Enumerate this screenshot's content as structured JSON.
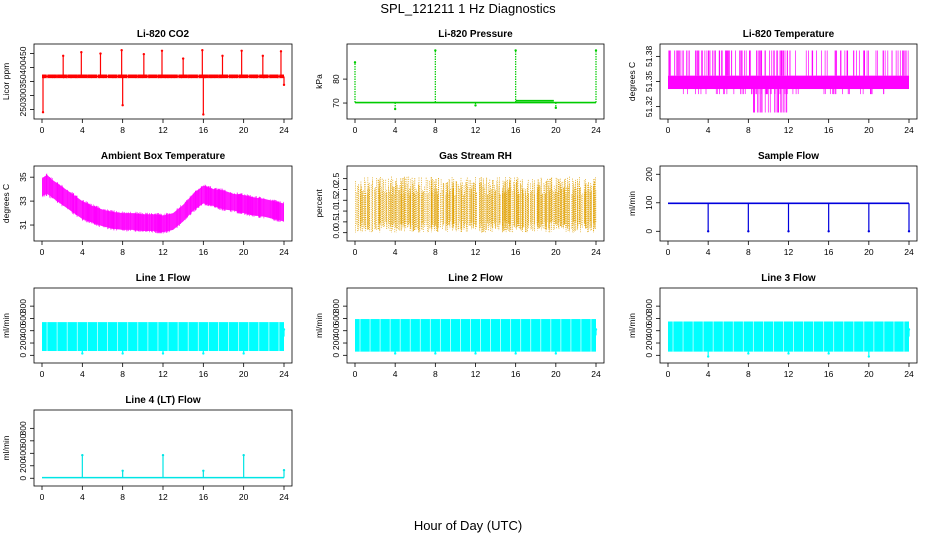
{
  "figure": {
    "title": "SPL_121211  1 Hz Diagnostics",
    "x_axis_label": "Hour of Day (UTC)"
  },
  "chart_data": [
    {
      "id": "li820-co2",
      "type": "line",
      "title": "Li-820 CO2",
      "xlabel": "",
      "ylabel": "Licor ppm",
      "color": "#ff0000",
      "xlim": [
        0,
        24
      ],
      "ylim": [
        230,
        470
      ],
      "x_ticks": [
        0,
        4,
        8,
        12,
        16,
        20,
        24
      ],
      "y_ticks": [
        250,
        300,
        350,
        400,
        450
      ],
      "baseline": 368,
      "band": [
        362,
        375
      ],
      "spikes": [
        {
          "x": 0.1,
          "y": 240
        },
        {
          "x": 2.1,
          "y": 442
        },
        {
          "x": 3.9,
          "y": 455
        },
        {
          "x": 5.8,
          "y": 450
        },
        {
          "x": 7.9,
          "y": 462
        },
        {
          "x": 8.0,
          "y": 265
        },
        {
          "x": 10.1,
          "y": 448
        },
        {
          "x": 11.9,
          "y": 460
        },
        {
          "x": 14.0,
          "y": 432
        },
        {
          "x": 15.9,
          "y": 462
        },
        {
          "x": 16.0,
          "y": 232
        },
        {
          "x": 17.9,
          "y": 442
        },
        {
          "x": 19.8,
          "y": 460
        },
        {
          "x": 21.9,
          "y": 442
        },
        {
          "x": 23.7,
          "y": 458
        },
        {
          "x": 24.0,
          "y": 338
        }
      ]
    },
    {
      "id": "li820-pressure",
      "type": "line",
      "title": "Li-820 Pressure",
      "xlabel": "",
      "ylabel": "kPa",
      "color": "#00cc00",
      "xlim": [
        0,
        24
      ],
      "ylim": [
        65,
        93
      ],
      "x_ticks": [
        0,
        4,
        8,
        12,
        16,
        20,
        24
      ],
      "y_ticks": [
        70,
        80
      ],
      "baseline": 70.2,
      "spikes": [
        {
          "x": 0.0,
          "y": 87
        },
        {
          "x": 4.0,
          "y": 67.5
        },
        {
          "x": 8.0,
          "y": 92
        },
        {
          "x": 12.0,
          "y": 69
        },
        {
          "x": 16.0,
          "y": 92
        },
        {
          "x": 20.0,
          "y": 68
        },
        {
          "x": 24.0,
          "y": 92
        }
      ],
      "step": {
        "x0": 16.0,
        "x1": 19.8,
        "y": 71.0
      }
    },
    {
      "id": "li820-temperature",
      "type": "area",
      "title": "Li-820 Temperature",
      "xlabel": "",
      "ylabel": "degrees C",
      "color": "#ff00ff",
      "xlim": [
        0,
        24
      ],
      "ylim": [
        51.31,
        51.39
      ],
      "x_ticks": [
        0,
        4,
        8,
        12,
        16,
        20,
        24
      ],
      "y_ticks": [
        51.32,
        51.35,
        51.38
      ],
      "band": [
        51.341,
        51.357
      ]
    },
    {
      "id": "ambient-box-temperature",
      "type": "area",
      "title": "Ambient Box Temperature",
      "xlabel": "",
      "ylabel": "degrees C",
      "color": "#ff00ff",
      "xlim": [
        0,
        24
      ],
      "ylim": [
        30.0,
        35.6
      ],
      "x_ticks": [
        0,
        4,
        8,
        12,
        16,
        20,
        24
      ],
      "y_ticks": [
        31,
        33,
        35
      ],
      "x": [
        0,
        0.5,
        1,
        2,
        3,
        4,
        5,
        6,
        7,
        8,
        9,
        10,
        11,
        12,
        13,
        14,
        15,
        16,
        17,
        18,
        19,
        20,
        21,
        22,
        23,
        24
      ],
      "upper": [
        34.9,
        35.2,
        34.8,
        34.2,
        33.6,
        33.0,
        32.6,
        32.3,
        32.1,
        32.0,
        32.0,
        31.9,
        31.9,
        31.8,
        32.0,
        32.7,
        33.6,
        34.3,
        34.0,
        33.9,
        33.6,
        33.5,
        33.3,
        33.2,
        33.0,
        32.8
      ],
      "lower": [
        33.4,
        33.6,
        33.3,
        32.7,
        32.1,
        31.5,
        31.2,
        30.9,
        30.7,
        30.6,
        30.6,
        30.5,
        30.5,
        30.4,
        30.6,
        31.3,
        32.2,
        32.8,
        32.6,
        32.3,
        32.2,
        32.0,
        31.8,
        31.7,
        31.5,
        31.3
      ]
    },
    {
      "id": "gas-stream-rh",
      "type": "area",
      "title": "Gas Stream RH",
      "xlabel": "",
      "ylabel": "percent",
      "color": "#e0a000",
      "xlim": [
        0,
        24
      ],
      "ylim": [
        -0.2,
        2.9
      ],
      "x_ticks": [
        0,
        4,
        8,
        12,
        16,
        20,
        24
      ],
      "y_ticks": [
        0.0,
        0.5,
        1.0,
        1.5,
        2.0,
        2.5
      ],
      "band": [
        0.0,
        2.6
      ]
    },
    {
      "id": "sample-flow",
      "type": "line",
      "title": "Sample Flow",
      "xlabel": "",
      "ylabel": "ml/min",
      "color": "#0000dd",
      "xlim": [
        0,
        24
      ],
      "ylim": [
        -20,
        215
      ],
      "x_ticks": [
        0,
        4,
        8,
        12,
        16,
        20,
        24
      ],
      "y_ticks": [
        0,
        100,
        200
      ],
      "baseline": 98,
      "spikes": [
        {
          "x": 4.0,
          "y": 0
        },
        {
          "x": 8.0,
          "y": 0
        },
        {
          "x": 12.0,
          "y": 0
        },
        {
          "x": 16.0,
          "y": 0
        },
        {
          "x": 20.0,
          "y": 0
        },
        {
          "x": 24.0,
          "y": 0
        }
      ]
    },
    {
      "id": "line-1-flow",
      "type": "area",
      "title": "Line 1 Flow",
      "xlabel": "",
      "ylabel": "ml/min",
      "color": "#00ffff",
      "xlim": [
        0,
        24
      ],
      "ylim": [
        -60,
        1030
      ],
      "x_ticks": [
        0,
        4,
        8,
        12,
        16,
        20,
        24
      ],
      "y_ticks": [
        0,
        200,
        400,
        600,
        800
      ],
      "band": [
        70,
        540
      ],
      "spikes": [
        {
          "x": 4.0,
          "y": 30
        },
        {
          "x": 8.0,
          "y": 30
        },
        {
          "x": 12.0,
          "y": 30
        },
        {
          "x": 16.0,
          "y": 30
        },
        {
          "x": 20.0,
          "y": 30
        },
        {
          "x": 24.0,
          "y": 420
        }
      ]
    },
    {
      "id": "line-2-flow",
      "type": "area",
      "title": "Line 2 Flow",
      "xlabel": "",
      "ylabel": "ml/min",
      "color": "#00ffff",
      "xlim": [
        0,
        24
      ],
      "ylim": [
        -60,
        1030
      ],
      "x_ticks": [
        0,
        4,
        8,
        12,
        16,
        20,
        24
      ],
      "y_ticks": [
        0,
        200,
        400,
        600,
        800
      ],
      "band": [
        60,
        590
      ],
      "spikes": [
        {
          "x": 4.0,
          "y": 30
        },
        {
          "x": 8.0,
          "y": 30
        },
        {
          "x": 12.0,
          "y": 30
        },
        {
          "x": 16.0,
          "y": 30
        },
        {
          "x": 20.0,
          "y": 30
        },
        {
          "x": 24.0,
          "y": 420
        }
      ]
    },
    {
      "id": "line-3-flow",
      "type": "area",
      "title": "Line 3 Flow",
      "xlabel": "",
      "ylabel": "ml/min",
      "color": "#00ffff",
      "xlim": [
        0,
        24
      ],
      "ylim": [
        -60,
        1030
      ],
      "x_ticks": [
        0,
        4,
        8,
        12,
        16,
        20,
        24
      ],
      "y_ticks": [
        0,
        200,
        400,
        600,
        800
      ],
      "band": [
        60,
        550
      ],
      "spikes": [
        {
          "x": 4.0,
          "y": -20
        },
        {
          "x": 8.0,
          "y": 30
        },
        {
          "x": 12.0,
          "y": 30
        },
        {
          "x": 16.0,
          "y": 30
        },
        {
          "x": 20.0,
          "y": -20
        },
        {
          "x": 24.0,
          "y": 420
        }
      ]
    },
    {
      "id": "line-4-lt-flow",
      "type": "line",
      "title": "Line 4 (LT) Flow",
      "xlabel": "",
      "ylabel": "ml/min",
      "color": "#00e5e5",
      "xlim": [
        0,
        24
      ],
      "ylim": [
        -60,
        1030
      ],
      "x_ticks": [
        0,
        4,
        8,
        12,
        16,
        20,
        24
      ],
      "y_ticks": [
        0,
        200,
        400,
        600,
        800
      ],
      "baseline": 10,
      "spikes": [
        {
          "x": 4.0,
          "y": 370
        },
        {
          "x": 8.0,
          "y": 120
        },
        {
          "x": 12.0,
          "y": 370
        },
        {
          "x": 16.0,
          "y": 120
        },
        {
          "x": 20.0,
          "y": 370
        },
        {
          "x": 24.0,
          "y": 130
        }
      ]
    }
  ]
}
